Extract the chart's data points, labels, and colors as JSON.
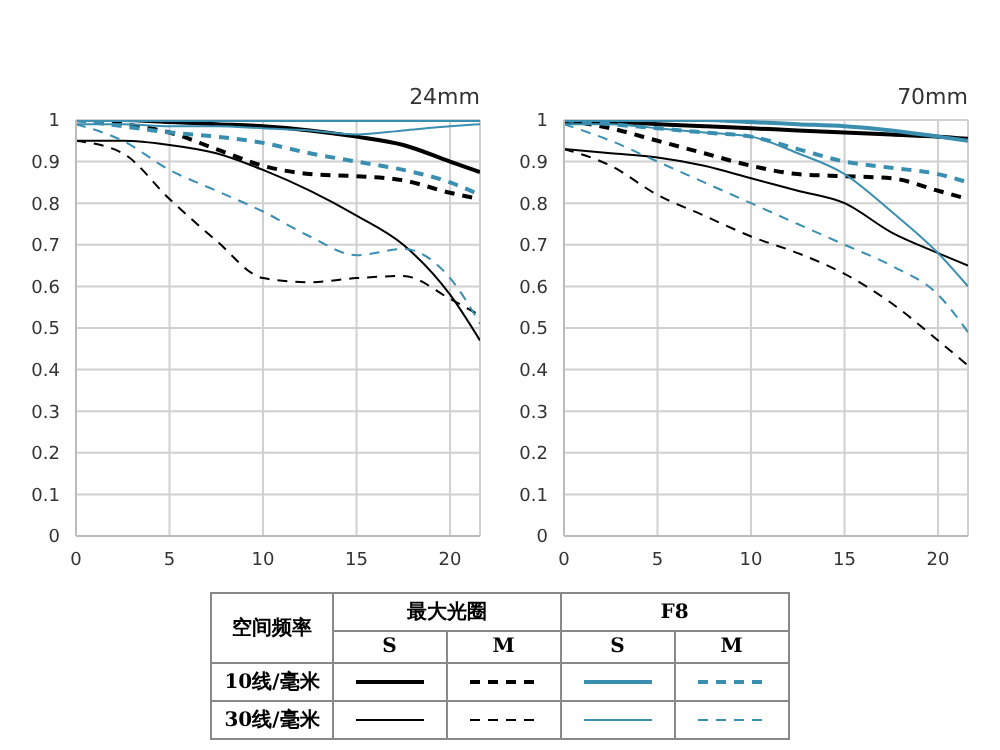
{
  "chart_data": [
    {
      "type": "line",
      "title": "24mm",
      "x": [
        0,
        2.5,
        5,
        7.5,
        10,
        12.5,
        15,
        17.5,
        20,
        21.6
      ],
      "xlim": [
        0,
        21.6
      ],
      "xticks": [
        0,
        5,
        10,
        15,
        20
      ],
      "ylim": [
        0,
        1
      ],
      "yticks": [
        0,
        0.1,
        0.2,
        0.3,
        0.4,
        0.5,
        0.6,
        0.7,
        0.8,
        0.9,
        1
      ],
      "grid": true,
      "marker": "none",
      "annotations": [
        "空间频率",
        "最大光圈",
        "F8",
        "S",
        "M",
        "S",
        "M",
        "10线/毫米",
        "30线/毫米"
      ],
      "series": [
        {
          "color": "#000000",
          "line_style": "solid",
          "values": [
            1,
            1,
            0.995,
            0.99,
            0.985,
            0.975,
            0.96,
            0.94,
            0.9,
            0.875
          ]
        },
        {
          "color": "#000000",
          "line_style": "dashed",
          "values": [
            1,
            0.99,
            0.97,
            0.93,
            0.89,
            0.87,
            0.865,
            0.855,
            0.825,
            0.81
          ]
        },
        {
          "color": "#3a8fb0",
          "line_style": "solid",
          "values": [
            1,
            1,
            1,
            1,
            1,
            1,
            1,
            1,
            1,
            1
          ]
        },
        {
          "color": "#3a8fb0",
          "line_style": "dashed",
          "values": [
            1,
            0.985,
            0.97,
            0.96,
            0.945,
            0.92,
            0.9,
            0.88,
            0.85,
            0.82
          ]
        },
        {
          "color": "#000000",
          "line_style": "solid",
          "values": [
            0.95,
            0.95,
            0.94,
            0.92,
            0.88,
            0.83,
            0.77,
            0.7,
            0.58,
            0.47
          ]
        },
        {
          "color": "#000000",
          "line_style": "dashed",
          "values": [
            0.95,
            0.92,
            0.81,
            0.71,
            0.62,
            0.61,
            0.62,
            0.625,
            0.57,
            0.53
          ]
        },
        {
          "color": "#3a8fb0",
          "line_style": "solid",
          "values": [
            0.99,
            0.99,
            0.985,
            0.985,
            0.98,
            0.975,
            0.965,
            0.975,
            0.985,
            0.99
          ]
        },
        {
          "color": "#3a8fb0",
          "line_style": "dashed",
          "values": [
            0.99,
            0.95,
            0.88,
            0.83,
            0.78,
            0.72,
            0.675,
            0.69,
            0.62,
            0.51
          ]
        }
      ]
    },
    {
      "type": "line",
      "title": "70mm",
      "x": [
        0,
        2.5,
        5,
        7.5,
        10,
        12.5,
        15,
        17.5,
        20,
        21.6
      ],
      "xlim": [
        0,
        21.6
      ],
      "xticks": [
        0,
        5,
        10,
        15,
        20
      ],
      "ylim": [
        0,
        1
      ],
      "yticks": [
        0,
        0.1,
        0.2,
        0.3,
        0.4,
        0.5,
        0.6,
        0.7,
        0.8,
        0.9,
        1
      ],
      "grid": true,
      "marker": "none",
      "series": [
        {
          "color": "#000000",
          "line_style": "solid",
          "values": [
            0.995,
            0.995,
            0.99,
            0.985,
            0.98,
            0.975,
            0.97,
            0.965,
            0.96,
            0.955
          ]
        },
        {
          "color": "#000000",
          "line_style": "dashed",
          "values": [
            1,
            0.98,
            0.95,
            0.92,
            0.89,
            0.87,
            0.865,
            0.86,
            0.83,
            0.81
          ]
        },
        {
          "color": "#3a8fb0",
          "line_style": "solid",
          "values": [
            1,
            1,
            1,
            1,
            0.995,
            0.99,
            0.985,
            0.975,
            0.96,
            0.95
          ]
        },
        {
          "color": "#3a8fb0",
          "line_style": "dashed",
          "values": [
            1,
            0.99,
            0.98,
            0.97,
            0.96,
            0.93,
            0.9,
            0.885,
            0.87,
            0.85
          ]
        },
        {
          "color": "#000000",
          "line_style": "solid",
          "values": [
            0.93,
            0.92,
            0.91,
            0.89,
            0.86,
            0.83,
            0.8,
            0.73,
            0.68,
            0.65
          ]
        },
        {
          "color": "#000000",
          "line_style": "dashed",
          "values": [
            0.93,
            0.89,
            0.82,
            0.77,
            0.72,
            0.68,
            0.63,
            0.56,
            0.47,
            0.41
          ]
        },
        {
          "color": "#3a8fb0",
          "line_style": "solid",
          "values": [
            0.99,
            0.99,
            0.98,
            0.97,
            0.96,
            0.92,
            0.87,
            0.78,
            0.68,
            0.6
          ]
        },
        {
          "color": "#3a8fb0",
          "line_style": "dashed",
          "values": [
            0.99,
            0.95,
            0.9,
            0.85,
            0.8,
            0.75,
            0.7,
            0.65,
            0.58,
            0.49
          ]
        }
      ]
    }
  ]
}
